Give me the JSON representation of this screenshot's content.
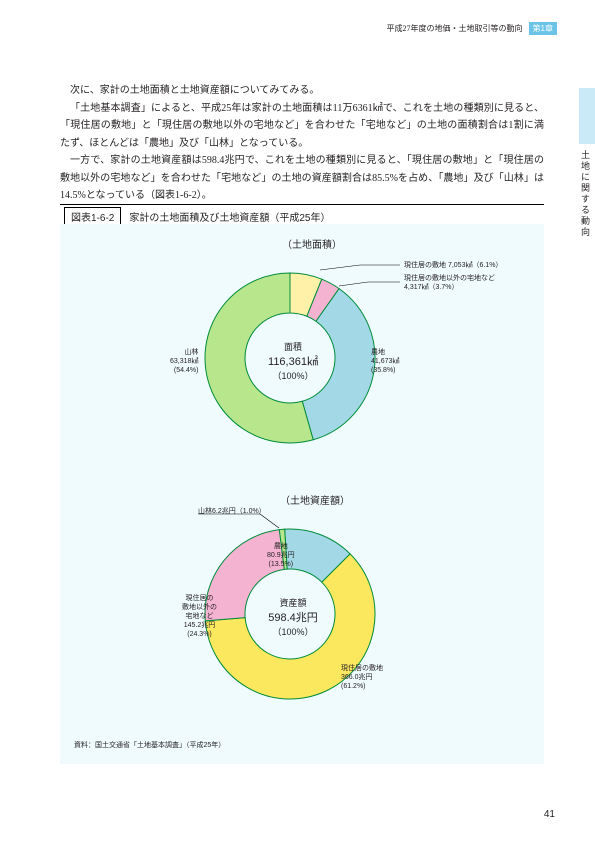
{
  "header": {
    "breadcrumb": "平成27年度の地価・土地取引等の動向",
    "chapter": "第1章"
  },
  "side_label": "土地に関する動向",
  "paragraphs": [
    "次に、家計の土地面積と土地資産額についてみてみる。",
    "「土地基本調査」によると、平成25年は家計の土地面積は11万6361㎢で、これを土地の種類別に見ると、「現住居の敷地」と「現住居の敷地以外の宅地など」を合わせた「宅地など」の土地の面積割合は1割に満たず、ほとんどは「農地」及び「山林」となっている。",
    "一方で、家計の土地資産額は598.4兆円で、これを土地の種類別に見ると、「現住居の敷地」と「現住居の敷地以外の宅地など」を合わせた「宅地など」の土地の資産額割合は85.5%を占め、「農地」及び「山林」は14.5%となっている（図表1-6-2）。"
  ],
  "chart_header": {
    "number": "図表1-6-2",
    "title": "家計の土地面積及び土地資産額（平成25年）"
  },
  "chart1": {
    "subtitle": "（土地面積）",
    "center_label": "面積",
    "center_value": "116,361㎢",
    "center_pct": "（100%）",
    "slices": [
      {
        "label": "山林\n63,318㎢\n(54.4%)",
        "value": 54.4,
        "color": "#b8e68c"
      },
      {
        "label": "現住居の敷地 7,053㎢（6.1%）",
        "value": 6.1,
        "color": "#fff1a8"
      },
      {
        "label": "現住居の敷地以外の宅地など\n4,317㎢（3.7%）",
        "value": 3.7,
        "color": "#f4b4d1"
      },
      {
        "label": "農地\n41,673㎢\n(35.8%)",
        "value": 35.8,
        "color": "#a3d9e6"
      }
    ],
    "background_color": "#f0fbfe",
    "stroke": "#008c3a"
  },
  "chart2": {
    "subtitle": "（土地資産額）",
    "center_label": "資産額",
    "center_value": "598.4兆円",
    "center_pct": "（100%）",
    "slices": [
      {
        "label": "現住居の\n敷地以外の\n宅地など\n145.2兆円\n(24.3%)",
        "value": 24.3,
        "color": "#f4b4d1"
      },
      {
        "label": "山林6.2兆円（1.0%）",
        "value": 1.0,
        "color": "#b8e68c"
      },
      {
        "label": "農地\n80.9兆円\n(13.5%)",
        "value": 13.5,
        "color": "#a3d9e6"
      },
      {
        "label": "現住居の敷地\n366.0兆円\n(61.2%)",
        "value": 61.2,
        "color": "#fce85f"
      }
    ],
    "background_color": "#f0fbfe",
    "stroke": "#008c3a"
  },
  "source": "資料：国土交通省「土地基本調査」（平成25年）",
  "page_number": "41"
}
